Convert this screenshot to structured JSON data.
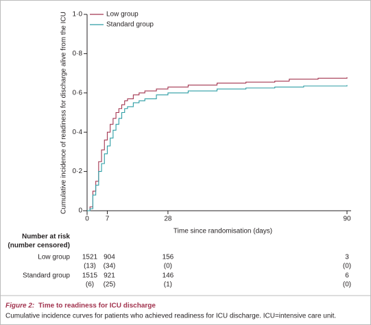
{
  "chart_data": {
    "type": "step",
    "y_label": "Cumulative incidence of readiness for discharge alive from the ICU",
    "x_label": "Time since randomisation (days)",
    "xlim": [
      0,
      90
    ],
    "ylim": [
      0,
      1
    ],
    "xticks": [
      0,
      7,
      28,
      90
    ],
    "yticks": [
      0,
      {
        "value": 0.2,
        "label": "0·2"
      },
      {
        "value": 0.4,
        "label": "0·4"
      },
      {
        "value": 0.6,
        "label": "0·6"
      },
      {
        "value": 0.8,
        "label": "0·8"
      },
      {
        "value": 1,
        "label": "1·0"
      }
    ],
    "series": [
      {
        "name": "Low group",
        "color": "#a2344f",
        "x": [
          0,
          1,
          2,
          3,
          4,
          5,
          6,
          7,
          8,
          9,
          10,
          11,
          12,
          13,
          14,
          16,
          18,
          20,
          24,
          28,
          35,
          45,
          55,
          65,
          70,
          80,
          90
        ],
        "values": [
          0,
          0.02,
          0.1,
          0.15,
          0.25,
          0.31,
          0.36,
          0.4,
          0.44,
          0.47,
          0.5,
          0.52,
          0.54,
          0.56,
          0.57,
          0.59,
          0.6,
          0.61,
          0.62,
          0.63,
          0.64,
          0.65,
          0.655,
          0.66,
          0.67,
          0.675,
          0.68
        ]
      },
      {
        "name": "Standard group",
        "color": "#2a9ca3",
        "x": [
          0,
          1,
          2,
          3,
          4,
          5,
          6,
          7,
          8,
          9,
          10,
          11,
          12,
          13,
          14,
          16,
          18,
          20,
          24,
          28,
          35,
          45,
          55,
          65,
          75,
          90
        ],
        "values": [
          0,
          0.01,
          0.08,
          0.13,
          0.2,
          0.24,
          0.29,
          0.33,
          0.37,
          0.41,
          0.44,
          0.47,
          0.5,
          0.52,
          0.53,
          0.55,
          0.56,
          0.57,
          0.59,
          0.6,
          0.61,
          0.62,
          0.625,
          0.63,
          0.635,
          0.64
        ]
      }
    ],
    "risk_table": {
      "title": [
        "Number at risk",
        "(number censored)"
      ],
      "rows": [
        {
          "name": "Low group",
          "at_risk": [
            1521,
            904,
            156,
            3
          ],
          "censored": [
            "(13)",
            "(34)",
            "(0)",
            "(0)"
          ]
        },
        {
          "name": "Standard group",
          "at_risk": [
            1515,
            921,
            146,
            6
          ],
          "censored": [
            "(6)",
            "(25)",
            "(1)",
            "(0)"
          ]
        }
      ]
    }
  },
  "caption": {
    "label": "Figure 2:",
    "title": "Time to readiness for ICU discharge",
    "text": "Cumulative incidence curves for patients who achieved readiness for ICU discharge. ICU=intensive care unit."
  }
}
